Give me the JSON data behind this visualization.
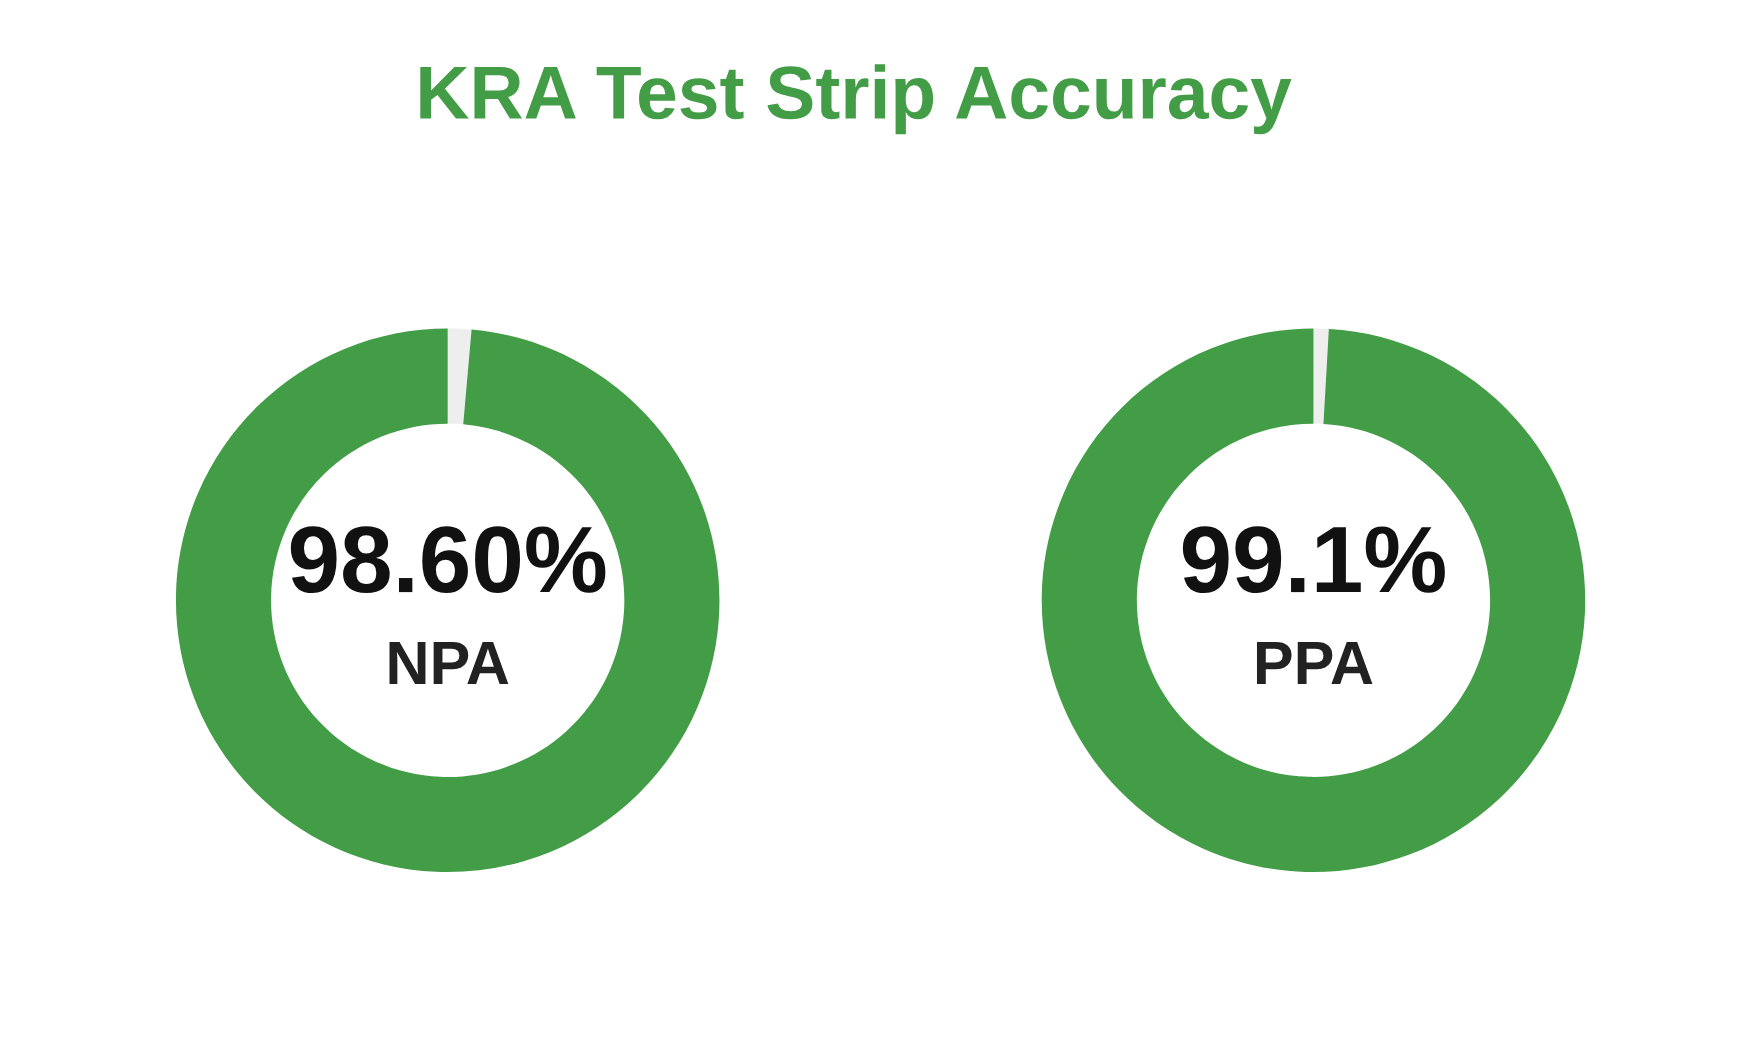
{
  "chart_data": [
    {
      "type": "donut",
      "title": "KRA Test Strip Accuracy",
      "categories": [
        null,
        null
      ],
      "values": [
        1.4,
        98.6
      ],
      "colors": [
        "#eeeeee",
        "#439c46"
      ],
      "value_labels": [
        null,
        "98.60%"
      ],
      "annotations": [
        "NPA"
      ]
    },
    {
      "type": "donut",
      "categories": [
        null,
        null
      ],
      "values": [
        0.9,
        99.1
      ],
      "colors": [
        "#eeeeee",
        "#439c46"
      ],
      "value_labels": [
        null,
        "99.1%"
      ],
      "annotations": [
        "PPA"
      ]
    }
  ]
}
